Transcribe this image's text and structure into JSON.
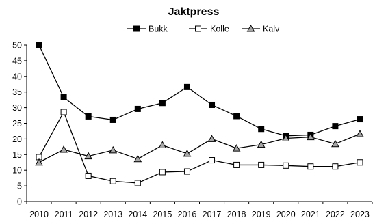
{
  "chart_data": {
    "type": "line",
    "title": "Jaktpress",
    "xlabel": "",
    "ylabel": "",
    "x": [
      2010,
      2011,
      2012,
      2013,
      2014,
      2015,
      2016,
      2017,
      2018,
      2019,
      2020,
      2021,
      2022,
      2023
    ],
    "x_tick_labels": [
      "2010",
      "2011",
      "2012",
      "2013",
      "2014",
      "2015",
      "2016",
      "2017",
      "2018",
      "2019",
      "2020",
      "2021",
      "2022",
      "2023"
    ],
    "ylim": [
      0,
      50
    ],
    "y_ticks": [
      0,
      5,
      10,
      15,
      20,
      25,
      30,
      35,
      40,
      45,
      50
    ],
    "y_tick_labels": [
      "0",
      "5",
      "10",
      "15",
      "20",
      "25",
      "30",
      "35",
      "40",
      "45",
      "50"
    ],
    "grid": false,
    "legend_position": "top",
    "series": [
      {
        "name": "Bukk",
        "marker": "square-filled",
        "color": "#000000",
        "values": [
          50.0,
          33.3,
          27.2,
          26.1,
          29.6,
          31.5,
          36.6,
          30.9,
          27.3,
          23.2,
          21.0,
          21.3,
          24.1,
          26.3
        ]
      },
      {
        "name": "Kolle",
        "marker": "square-open",
        "color": "#000000",
        "values": [
          14.2,
          28.6,
          8.2,
          6.5,
          5.9,
          9.4,
          9.6,
          13.2,
          11.7,
          11.7,
          11.5,
          11.2,
          11.2,
          12.5
        ]
      },
      {
        "name": "Kalv",
        "marker": "triangle-gray",
        "color": "#000000",
        "marker_fill": "#a6a6a6",
        "values": [
          12.5,
          16.6,
          14.5,
          16.4,
          13.6,
          18.0,
          15.3,
          20.0,
          17.0,
          18.2,
          20.2,
          20.6,
          18.4,
          21.6
        ]
      }
    ]
  }
}
